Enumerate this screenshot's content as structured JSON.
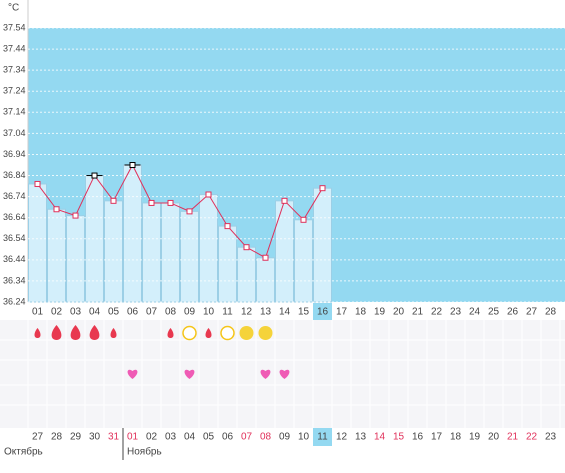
{
  "unit": "°C",
  "chart_data": {
    "type": "bar",
    "ylim": [
      36.24,
      37.54
    ],
    "yticks": [
      37.54,
      37.44,
      37.34,
      37.24,
      37.14,
      37.04,
      36.94,
      36.84,
      36.74,
      36.64,
      36.54,
      36.44,
      36.34,
      36.24
    ],
    "grid": true,
    "categories": [
      "01",
      "02",
      "03",
      "04",
      "05",
      "06",
      "07",
      "08",
      "09",
      "10",
      "11",
      "12",
      "13",
      "14",
      "15",
      "16",
      "17",
      "18",
      "19",
      "20",
      "21",
      "22",
      "23",
      "24",
      "25",
      "26",
      "27",
      "28"
    ],
    "values": [
      36.8,
      36.68,
      36.65,
      36.84,
      36.72,
      36.89,
      36.71,
      36.71,
      36.67,
      36.75,
      36.6,
      36.5,
      36.45,
      36.72,
      36.63,
      36.78,
      null,
      null,
      null,
      null,
      null,
      null,
      null,
      null,
      null,
      null,
      null,
      null
    ],
    "highlighted_points": [
      false,
      false,
      false,
      true,
      false,
      true,
      false,
      false,
      false,
      false,
      false,
      false,
      false,
      false,
      false,
      false,
      false,
      false,
      false,
      false,
      false,
      false,
      false,
      false,
      false,
      false,
      false,
      false
    ],
    "selected_category": "16",
    "color": "#d3effb",
    "line_color": "#e0305a",
    "background_color": "#94d9f1"
  },
  "symbols": [
    "drop-small",
    "drop-large",
    "drop-large",
    "drop-large",
    "drop-small",
    null,
    null,
    "drop-small",
    "circle-open",
    "drop-small",
    "circle-open",
    "circle-filled",
    "circle-filled",
    null,
    null,
    null,
    null,
    null,
    null,
    null,
    null,
    null,
    null,
    null,
    null,
    null,
    null,
    null
  ],
  "hearts": [
    false,
    false,
    false,
    false,
    false,
    true,
    false,
    false,
    true,
    false,
    false,
    false,
    true,
    true,
    false,
    false,
    false,
    false,
    false,
    false,
    false,
    false,
    false,
    false,
    false,
    false,
    false,
    false
  ],
  "dates": [
    "27",
    "28",
    "29",
    "30",
    "31",
    "01",
    "02",
    "03",
    "04",
    "05",
    "06",
    "07",
    "08",
    "09",
    "10",
    "11",
    "12",
    "13",
    "14",
    "15",
    "16",
    "17",
    "18",
    "19",
    "20",
    "21",
    "22",
    "23"
  ],
  "weekend": [
    false,
    false,
    false,
    false,
    true,
    true,
    false,
    false,
    false,
    false,
    false,
    true,
    true,
    false,
    false,
    false,
    false,
    false,
    true,
    true,
    false,
    false,
    false,
    false,
    false,
    true,
    true,
    false
  ],
  "months": [
    {
      "label": "Октябрь",
      "start": 0
    },
    {
      "label": "Ноябрь",
      "start": 5
    }
  ]
}
